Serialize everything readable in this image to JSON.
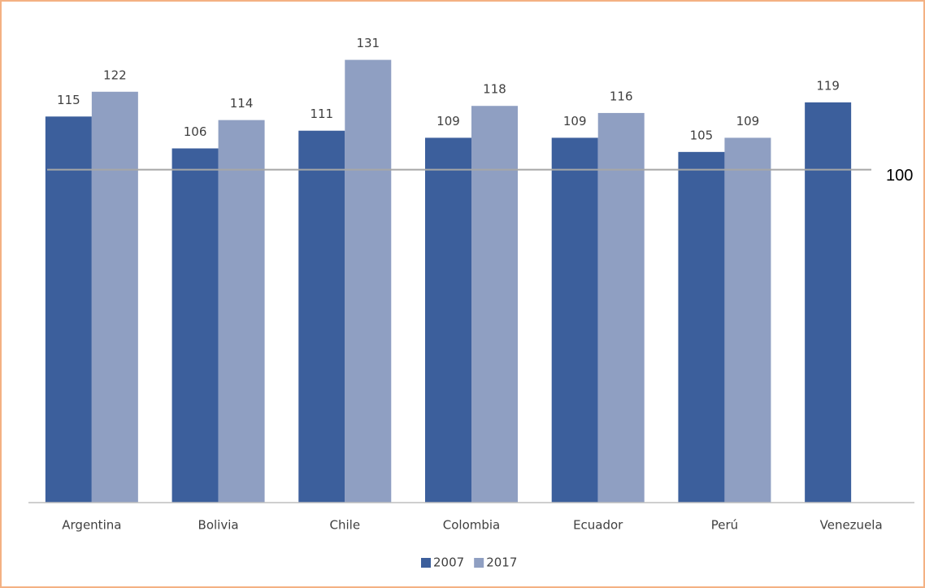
{
  "chart_data": {
    "type": "bar",
    "categories": [
      "Argentina",
      "Bolivia",
      "Chile",
      "Colombia",
      "Ecuador",
      "Perú",
      "Venezuela"
    ],
    "series": [
      {
        "name": "2007",
        "color": "#3c5f9c",
        "values": [
          115,
          106,
          111,
          109,
          109,
          105,
          119
        ]
      },
      {
        "name": "2017",
        "color": "#8f9fc2",
        "values": [
          122,
          114,
          131,
          118,
          116,
          109,
          null
        ]
      }
    ],
    "ylim": [
      6,
      140
    ],
    "reference_line": 100,
    "legend": "bottom"
  }
}
